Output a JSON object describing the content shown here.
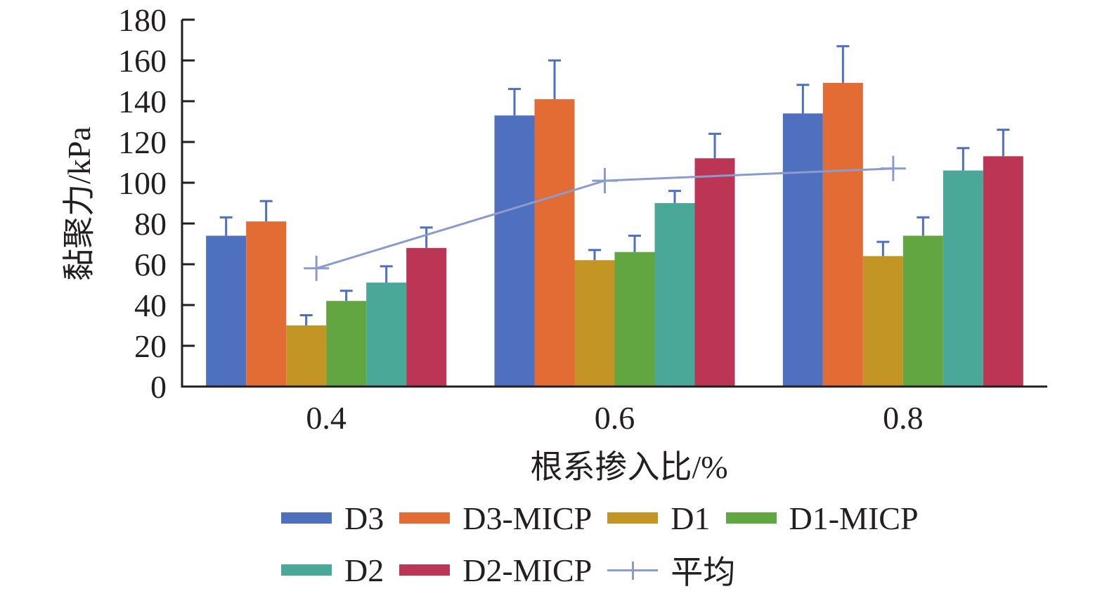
{
  "chart_data": {
    "type": "bar",
    "title": "",
    "xlabel": "根系掺入比/%",
    "ylabel": "黏聚力/kPa",
    "ylim": [
      0,
      180
    ],
    "yticks": [
      "0",
      "20",
      "40",
      "60",
      "80",
      "100",
      "120",
      "140",
      "160",
      "180"
    ],
    "categories": [
      "0.4",
      "0.6",
      "0.8"
    ],
    "series": [
      {
        "name": "D3",
        "color": "#4f6fbf",
        "values": [
          74,
          133,
          134
        ],
        "error_upper": [
          83,
          146,
          148
        ]
      },
      {
        "name": "D3-MICP",
        "color": "#e36c34",
        "values": [
          81,
          141,
          149
        ],
        "error_upper": [
          91,
          160,
          167
        ]
      },
      {
        "name": "D1",
        "color": "#c39525",
        "values": [
          30,
          62,
          64
        ],
        "error_upper": [
          35,
          67,
          71
        ]
      },
      {
        "name": "D1-MICP",
        "color": "#62a641",
        "values": [
          42,
          66,
          74
        ],
        "error_upper": [
          47,
          74,
          83
        ]
      },
      {
        "name": "D2",
        "color": "#4aa898",
        "values": [
          51,
          90,
          106
        ],
        "error_upper": [
          59,
          96,
          117
        ]
      },
      {
        "name": "D2-MICP",
        "color": "#bc3555",
        "values": [
          68,
          112,
          113
        ],
        "error_upper": [
          78,
          124,
          126
        ]
      }
    ],
    "line_series": {
      "name": "平均",
      "color": "#8a9bd0",
      "values": [
        58,
        101,
        107
      ]
    },
    "error_bar_color": "#4f6fbf",
    "legend_position": "bottom",
    "grid": false
  }
}
